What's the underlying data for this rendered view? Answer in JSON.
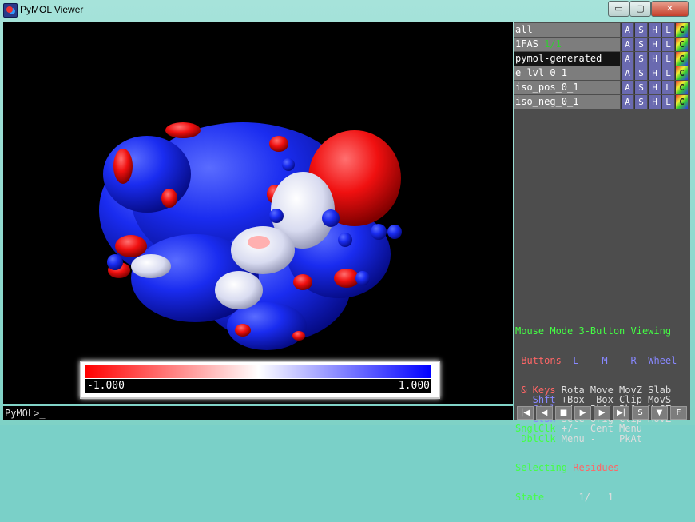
{
  "window": {
    "title": "PyMOL Viewer",
    "buttons": {
      "minimize": "▭",
      "maximize": "▢",
      "close": "✕"
    }
  },
  "viewer": {
    "colorbar": {
      "min_label": "-1.000",
      "max_label": "1.000"
    }
  },
  "command": {
    "prompt": "PyMOL>_"
  },
  "objects": [
    {
      "name": "all",
      "state": "",
      "selected": false
    },
    {
      "name": "1FAS",
      "state": "1/1",
      "selected": false
    },
    {
      "name": "pymol-generated",
      "state": "",
      "selected": true
    },
    {
      "name": "e_lvl_0_1",
      "state": "",
      "selected": false
    },
    {
      "name": "iso_pos_0_1",
      "state": "",
      "selected": false
    },
    {
      "name": "iso_neg_0_1",
      "state": "",
      "selected": false
    }
  ],
  "object_buttons": [
    "A",
    "S",
    "H",
    "L",
    "C"
  ],
  "mouse_info": {
    "mode_label": "Mouse Mode",
    "mode_value": "3-Button Viewing",
    "buttons_label": "Buttons",
    "col_l": "L",
    "col_m": "M",
    "col_r": "R",
    "col_wheel": "Wheel",
    "rows": [
      {
        "key": "& Keys",
        "l": "Rota",
        "m": "Move",
        "r": "MovZ",
        "w": "Slab"
      },
      {
        "key": "Shft",
        "l": "+Box",
        "m": "-Box",
        "r": "Clip",
        "w": "MovS"
      },
      {
        "key": "Ctrl",
        "l": "+/-",
        "m": "PkAt",
        "r": "Pk1",
        "w": "MvSZ"
      },
      {
        "key": "CtSh",
        "l": "Sele",
        "m": "Orig",
        "r": "Clip",
        "w": "MovZ"
      },
      {
        "key": "SnglClk",
        "l": "+/-",
        "m": "Cent",
        "r": "Menu",
        "w": ""
      },
      {
        "key": "DblClk",
        "l": "Menu",
        "m": "-",
        "r": "PkAt",
        "w": ""
      }
    ],
    "selecting_label": "Selecting",
    "selecting_value": "Residues",
    "state_label": "State",
    "state_value": "1/",
    "state_total": "1"
  },
  "transport": [
    "|◀",
    "◀",
    "■",
    "▶",
    "▶",
    "▶|",
    "S",
    "▼",
    "F"
  ]
}
